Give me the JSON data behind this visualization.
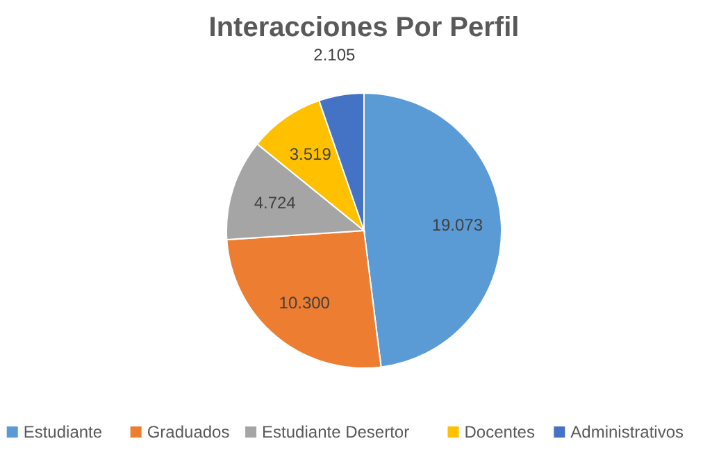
{
  "chart_data": {
    "type": "pie",
    "title": "Interacciones Por Perfil",
    "categories": [
      "Estudiante",
      "Graduados",
      "Estudiante Desertor",
      "Docentes",
      "Administrativos"
    ],
    "values": [
      19073,
      10300,
      4724,
      3519,
      2105
    ],
    "value_labels": [
      "19.073",
      "10.300",
      "4.724",
      "3.519",
      "2.105"
    ],
    "colors": [
      "#5b9bd5",
      "#ed7d31",
      "#a5a5a5",
      "#ffc000",
      "#4472c4"
    ],
    "legend": "bottom"
  }
}
